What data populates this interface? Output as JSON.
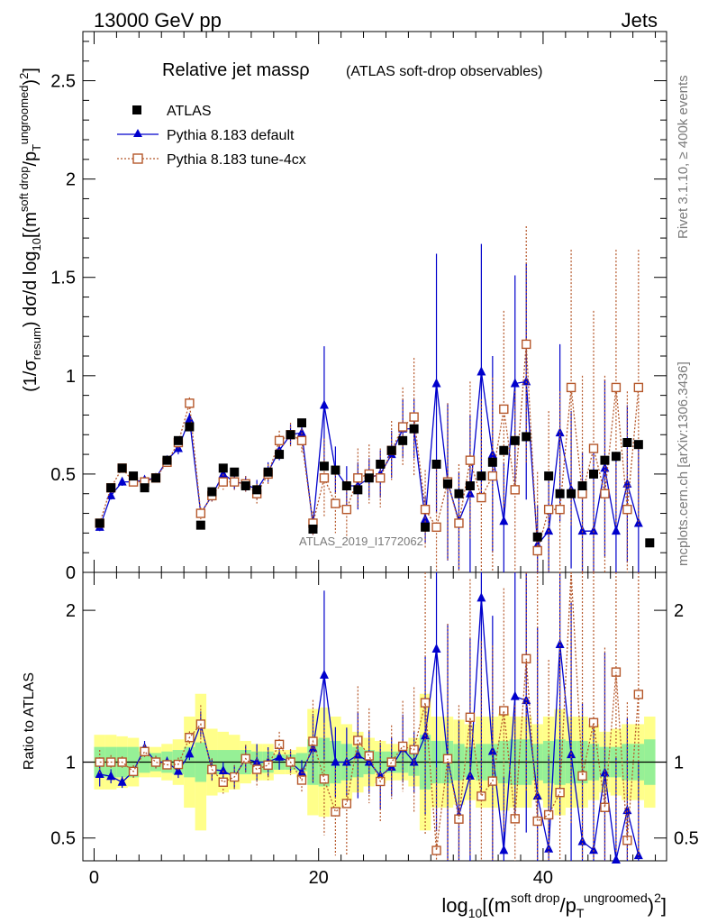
{
  "header": {
    "left": "13000 GeV pp",
    "right": "Jets"
  },
  "side_text": {
    "rivet": "Rivet 3.1.10, ≥ 400k events",
    "mcplots": "mcplots.cern.ch [arXiv:1306.3436]"
  },
  "watermark": "ATLAS_2019_I1772062",
  "chart_data": {
    "type": "scatter",
    "title": "Relative jet massρ",
    "subtitle": "(ATLAS soft-drop observables)",
    "xlabel": "log10[(m^soft drop/pT^ungroomed)^2]",
    "ylabel": "(1/σresum) dσ/d log10[(m^soft drop/pT^ungroomed)^2]",
    "ratio_ylabel": "Ratio to ATLAS",
    "xlim": [
      -1,
      51
    ],
    "ylim": [
      0,
      2.75
    ],
    "ratio_ylim": [
      0.35,
      2.25
    ],
    "x_ticks": [
      "0",
      "20",
      "40"
    ],
    "y_ticks": [
      "0",
      "0.5",
      "1",
      "1.5",
      "2",
      "2.5"
    ],
    "ratio_y_ticks": [
      "0.5",
      "1",
      "2"
    ],
    "legend": [
      {
        "name": "ATLAS",
        "color": "#000000",
        "marker": "square"
      },
      {
        "name": "Pythia 8.183 default",
        "color": "#0000cc",
        "marker": "triangle"
      },
      {
        "name": "Pythia 8.183 tune-4cx",
        "color": "#b5572a",
        "marker": "open-square"
      }
    ],
    "x": [
      0.5,
      1.5,
      2.5,
      3.5,
      4.5,
      5.5,
      6.5,
      7.5,
      8.5,
      9.5,
      10.5,
      11.5,
      12.5,
      13.5,
      14.5,
      15.5,
      16.5,
      17.5,
      18.5,
      19.5,
      20.5,
      21.5,
      22.5,
      23.5,
      24.5,
      25.5,
      26.5,
      27.5,
      28.5,
      29.5,
      30.5,
      31.5,
      32.5,
      33.5,
      34.5,
      35.5,
      36.5,
      37.5,
      38.5,
      39.5,
      40.5,
      41.5,
      42.5,
      43.5,
      44.5,
      45.5,
      46.5,
      47.5,
      48.5,
      49.5
    ],
    "series": [
      {
        "name": "ATLAS",
        "color": "#000000",
        "values": [
          0.25,
          0.43,
          0.53,
          0.49,
          0.43,
          0.48,
          0.57,
          0.67,
          0.74,
          0.24,
          0.41,
          0.53,
          0.51,
          0.44,
          0.42,
          0.51,
          0.6,
          0.7,
          0.76,
          0.22,
          0.54,
          0.52,
          0.44,
          0.42,
          0.48,
          0.55,
          0.62,
          0.67,
          0.73,
          0.23,
          0.55,
          0.45,
          0.4,
          0.44,
          0.49,
          0.56,
          0.62,
          0.67,
          0.69,
          0.18,
          0.49,
          0.4,
          0.4,
          0.44,
          0.5,
          0.57,
          0.59,
          0.66,
          0.65,
          0.15
        ]
      },
      {
        "name": "Pythia 8.183 default",
        "color": "#0000cc",
        "values": [
          0.23,
          0.39,
          0.46,
          0.46,
          0.47,
          0.48,
          0.57,
          0.63,
          0.78,
          0.3,
          0.39,
          0.5,
          0.46,
          0.45,
          0.42,
          0.51,
          0.62,
          0.7,
          0.71,
          0.24,
          0.85,
          0.52,
          0.44,
          0.44,
          0.48,
          0.5,
          0.6,
          0.73,
          0.73,
          0.27,
          0.96,
          0.46,
          0.26,
          0.4,
          1.02,
          0.6,
          0.26,
          0.96,
          0.97,
          0.14,
          0.21,
          0.71,
          0.42,
          0.21,
          0.21,
          0.53,
          0.21,
          0.45,
          0.25,
          null
        ],
        "err": [
          0.02,
          0.02,
          0.02,
          0.02,
          0.02,
          0.02,
          0.02,
          0.03,
          0.03,
          0.02,
          0.03,
          0.03,
          0.04,
          0.04,
          0.05,
          0.05,
          0.05,
          0.05,
          0.06,
          0.05,
          0.3,
          0.12,
          0.1,
          0.12,
          0.1,
          0.12,
          0.12,
          0.15,
          0.15,
          0.12,
          0.66,
          0.4,
          0.25,
          0.4,
          0.65,
          0.5,
          0.3,
          0.55,
          0.6,
          0.2,
          0.3,
          0.45,
          0.4,
          0.4,
          0.4,
          0.45,
          0.4,
          0.4,
          0.4,
          0
        ]
      },
      {
        "name": "Pythia 8.183 tune-4cx",
        "color": "#b5572a",
        "values": [
          0.25,
          0.43,
          0.53,
          0.46,
          0.46,
          0.48,
          0.56,
          0.66,
          0.86,
          0.3,
          0.39,
          0.46,
          0.46,
          0.45,
          0.4,
          0.5,
          0.67,
          0.7,
          0.67,
          0.25,
          0.48,
          0.35,
          0.32,
          0.48,
          0.5,
          0.48,
          0.62,
          0.74,
          0.79,
          0.32,
          0.23,
          0.46,
          0.25,
          0.57,
          0.38,
          0.49,
          0.83,
          0.42,
          1.16,
          0.11,
          0.32,
          0.32,
          0.94,
          0.4,
          0.63,
          0.4,
          0.94,
          0.32,
          0.94,
          null
        ],
        "err": [
          0.02,
          0.02,
          0.02,
          0.02,
          0.02,
          0.02,
          0.02,
          0.03,
          0.03,
          0.03,
          0.03,
          0.04,
          0.04,
          0.04,
          0.05,
          0.05,
          0.05,
          0.06,
          0.06,
          0.06,
          0.2,
          0.15,
          0.15,
          0.15,
          0.15,
          0.15,
          0.15,
          0.2,
          0.3,
          0.2,
          0.3,
          0.4,
          0.3,
          0.4,
          0.5,
          0.5,
          0.5,
          0.5,
          0.6,
          0.4,
          0.5,
          0.6,
          0.7,
          0.6,
          0.7,
          0.6,
          0.7,
          0.6,
          0.7,
          0
        ]
      }
    ],
    "ratio_bands": {
      "inner": [
        0.1,
        0.1,
        0.1,
        0.1,
        0.07,
        0.06,
        0.07,
        0.08,
        0.1,
        0.13,
        0.08,
        0.08,
        0.08,
        0.08,
        0.07,
        0.07,
        0.05,
        0.05,
        0.06,
        0.15,
        0.16,
        0.14,
        0.12,
        0.1,
        0.08,
        0.07,
        0.07,
        0.07,
        0.09,
        0.18,
        0.14,
        0.14,
        0.12,
        0.1,
        0.12,
        0.12,
        0.14,
        0.15,
        0.15,
        0.12,
        0.14,
        0.15,
        0.14,
        0.14,
        0.12,
        0.1,
        0.1,
        0.12,
        0.12,
        0.15
      ],
      "outer": [
        0.18,
        0.18,
        0.17,
        0.16,
        0.1,
        0.1,
        0.12,
        0.15,
        0.3,
        0.45,
        0.22,
        0.2,
        0.18,
        0.14,
        0.12,
        0.12,
        0.08,
        0.08,
        0.1,
        0.35,
        0.36,
        0.3,
        0.25,
        0.2,
        0.16,
        0.14,
        0.12,
        0.12,
        0.16,
        0.45,
        0.3,
        0.3,
        0.28,
        0.25,
        0.3,
        0.3,
        0.32,
        0.3,
        0.3,
        0.25,
        0.3,
        0.35,
        0.3,
        0.3,
        0.25,
        0.2,
        0.22,
        0.25,
        0.25,
        0.3
      ]
    }
  }
}
